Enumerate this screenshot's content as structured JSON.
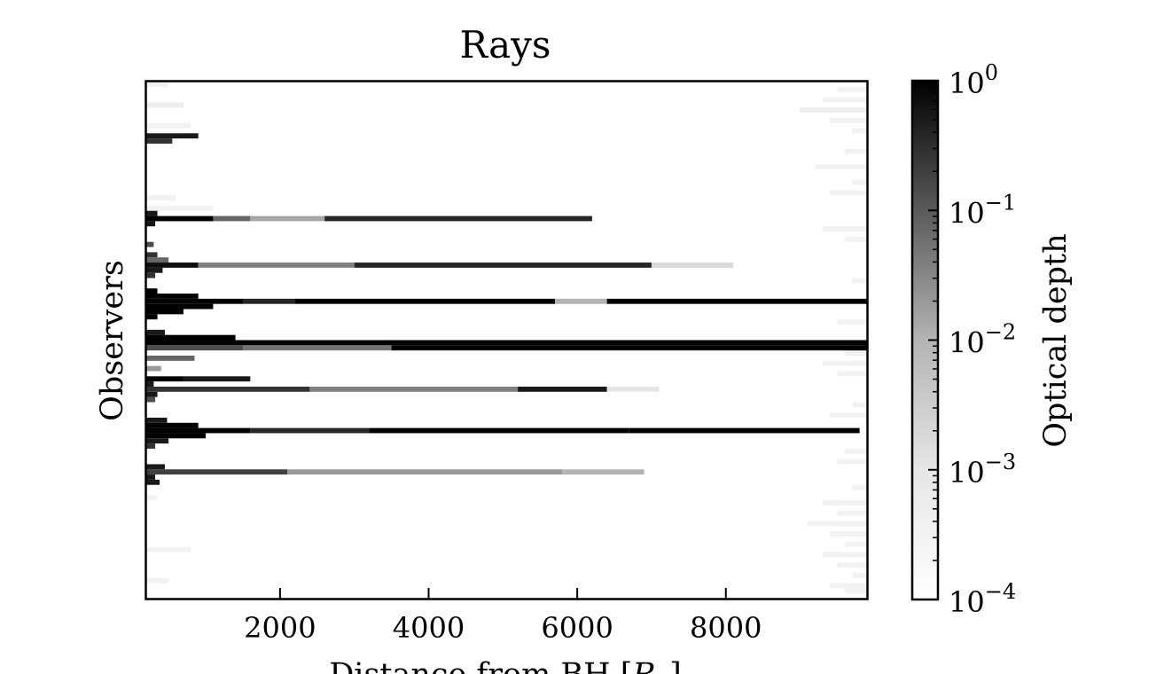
{
  "chart_data": {
    "type": "heatmap",
    "title": "Rays",
    "xlabel": "Distance from BH [R_g]",
    "ylabel": "Observers",
    "xlim": [
      200,
      9900
    ],
    "x_ticks": [
      {
        "value": 2000,
        "label": "2000"
      },
      {
        "value": 4000,
        "label": "4000"
      },
      {
        "value": 6000,
        "label": "6000"
      },
      {
        "value": 8000,
        "label": "8000"
      }
    ],
    "y_ticks_shown": false,
    "colormap": "grayscale (white = low, black = high)",
    "colorbar": {
      "label": "Optical depth",
      "scale": "log",
      "range": [
        0.0001,
        1
      ],
      "ticks": [
        {
          "value": 1,
          "base": "10",
          "exp": "0"
        },
        {
          "value": 0.1,
          "base": "10",
          "exp": "−1"
        },
        {
          "value": 0.01,
          "base": "10",
          "exp": "−2"
        },
        {
          "value": 0.001,
          "base": "10",
          "exp": "−3"
        },
        {
          "value": 0.0001,
          "base": "10",
          "exp": "−4"
        }
      ]
    },
    "observer_count": 100,
    "observer_rays": [
      {
        "observer": 26,
        "extent": 6200,
        "segments": [
          [
            200,
            1100,
            1
          ],
          [
            1100,
            1600,
            0.6
          ],
          [
            1600,
            2600,
            0.35
          ],
          [
            2600,
            6200,
            0.85
          ]
        ]
      },
      {
        "observer": 35,
        "extent": 8100,
        "segments": [
          [
            200,
            900,
            0.95
          ],
          [
            900,
            3000,
            0.5
          ],
          [
            3000,
            7000,
            0.85
          ],
          [
            7000,
            8100,
            0.15
          ]
        ]
      },
      {
        "observer": 42,
        "extent": 9900,
        "segments": [
          [
            200,
            1500,
            1
          ],
          [
            1500,
            2200,
            0.85
          ],
          [
            2200,
            5700,
            1
          ],
          [
            5700,
            6400,
            0.3
          ],
          [
            6400,
            9900,
            1
          ]
        ]
      },
      {
        "observer": 50,
        "extent": 9900,
        "segments": [
          [
            200,
            9900,
            1
          ]
        ]
      },
      {
        "observer": 51,
        "extent": 9900,
        "segments": [
          [
            200,
            1500,
            0.7
          ],
          [
            1500,
            3500,
            0.55
          ],
          [
            3500,
            9900,
            1
          ]
        ]
      },
      {
        "observer": 57,
        "extent": 1600,
        "segments": [
          [
            200,
            700,
            1
          ],
          [
            700,
            1600,
            0.9
          ]
        ]
      },
      {
        "observer": 59,
        "extent": 7100,
        "segments": [
          [
            200,
            2400,
            0.8
          ],
          [
            2400,
            5200,
            0.5
          ],
          [
            5200,
            6400,
            0.9
          ],
          [
            6400,
            7100,
            0.1
          ]
        ]
      },
      {
        "observer": 67,
        "extent": 9800,
        "segments": [
          [
            200,
            1600,
            1
          ],
          [
            1600,
            3200,
            0.85
          ],
          [
            3200,
            6700,
            1
          ],
          [
            6700,
            9800,
            1
          ]
        ]
      },
      {
        "observer": 75,
        "extent": 6900,
        "segments": [
          [
            200,
            2100,
            0.75
          ],
          [
            2100,
            5800,
            0.4
          ],
          [
            5800,
            6900,
            0.3
          ]
        ]
      }
    ],
    "observer_tails": [
      {
        "observer": 0,
        "length": 300,
        "level": 0.05
      },
      {
        "observer": 4,
        "length": 500,
        "level": 0.07
      },
      {
        "observer": 8,
        "length": 600,
        "level": 0.05
      },
      {
        "observer": 10,
        "length": 700,
        "level": 0.9
      },
      {
        "observer": 11,
        "length": 350,
        "level": 0.8
      },
      {
        "observer": 22,
        "length": 400,
        "level": 0.05
      },
      {
        "observer": 24,
        "length": 900,
        "level": 0.05
      },
      {
        "observer": 25,
        "length": 150,
        "level": 0.9
      },
      {
        "observer": 27,
        "length": 120,
        "level": 0.9
      },
      {
        "observer": 31,
        "length": 100,
        "level": 0.7
      },
      {
        "observer": 33,
        "length": 150,
        "level": 0.8
      },
      {
        "observer": 34,
        "length": 300,
        "level": 0.6
      },
      {
        "observer": 36,
        "length": 220,
        "level": 0.9
      },
      {
        "observer": 37,
        "length": 120,
        "level": 0.8
      },
      {
        "observer": 40,
        "length": 150,
        "level": 1
      },
      {
        "observer": 41,
        "length": 700,
        "level": 1
      },
      {
        "observer": 43,
        "length": 900,
        "level": 1
      },
      {
        "observer": 44,
        "length": 500,
        "level": 1
      },
      {
        "observer": 45,
        "length": 150,
        "level": 1
      },
      {
        "observer": 48,
        "length": 250,
        "level": 0.9
      },
      {
        "observer": 49,
        "length": 1200,
        "level": 1
      },
      {
        "observer": 53,
        "length": 650,
        "level": 0.6
      },
      {
        "observer": 55,
        "length": 200,
        "level": 0.4
      },
      {
        "observer": 58,
        "length": 100,
        "level": 0.9
      },
      {
        "observer": 60,
        "length": 150,
        "level": 0.9
      },
      {
        "observer": 61,
        "length": 120,
        "level": 0.7
      },
      {
        "observer": 65,
        "length": 280,
        "level": 0.9
      },
      {
        "observer": 66,
        "length": 700,
        "level": 1
      },
      {
        "observer": 68,
        "length": 800,
        "level": 1
      },
      {
        "observer": 69,
        "length": 300,
        "level": 0.9
      },
      {
        "observer": 70,
        "length": 120,
        "level": 0.8
      },
      {
        "observer": 74,
        "length": 250,
        "level": 0.9
      },
      {
        "observer": 76,
        "length": 120,
        "level": 0.9
      },
      {
        "observer": 77,
        "length": 180,
        "level": 0.9
      },
      {
        "observer": 80,
        "length": 150,
        "level": 0.05
      },
      {
        "observer": 90,
        "length": 600,
        "level": 0.05
      },
      {
        "observer": 96,
        "length": 300,
        "level": 0.05
      }
    ],
    "observer_edge_noise": [
      {
        "observer": 1,
        "start": 9500,
        "level": 0.05
      },
      {
        "observer": 3,
        "start": 9300,
        "level": 0.05
      },
      {
        "observer": 5,
        "start": 9000,
        "level": 0.07
      },
      {
        "observer": 7,
        "start": 9400,
        "level": 0.05
      },
      {
        "observer": 9,
        "start": 9700,
        "level": 0.05
      },
      {
        "observer": 13,
        "start": 9600,
        "level": 0.05
      },
      {
        "observer": 16,
        "start": 9200,
        "level": 0.05
      },
      {
        "observer": 19,
        "start": 9700,
        "level": 0.05
      },
      {
        "observer": 21,
        "start": 9400,
        "level": 0.05
      },
      {
        "observer": 28,
        "start": 9300,
        "level": 0.05
      },
      {
        "observer": 30,
        "start": 9600,
        "level": 0.05
      },
      {
        "observer": 38,
        "start": 9700,
        "level": 0.05
      },
      {
        "observer": 46,
        "start": 9500,
        "level": 0.05
      },
      {
        "observer": 52,
        "start": 9600,
        "level": 0.05
      },
      {
        "observer": 54,
        "start": 9300,
        "level": 0.05
      },
      {
        "observer": 56,
        "start": 9500,
        "level": 0.05
      },
      {
        "observer": 62,
        "start": 9700,
        "level": 0.05
      },
      {
        "observer": 64,
        "start": 9400,
        "level": 0.05
      },
      {
        "observer": 71,
        "start": 9600,
        "level": 0.05
      },
      {
        "observer": 73,
        "start": 9500,
        "level": 0.05
      },
      {
        "observer": 78,
        "start": 9700,
        "level": 0.05
      },
      {
        "observer": 81,
        "start": 9300,
        "level": 0.05
      },
      {
        "observer": 83,
        "start": 9500,
        "level": 0.05
      },
      {
        "observer": 85,
        "start": 9100,
        "level": 0.05
      },
      {
        "observer": 87,
        "start": 9400,
        "level": 0.05
      },
      {
        "observer": 89,
        "start": 9600,
        "level": 0.05
      },
      {
        "observer": 91,
        "start": 9300,
        "level": 0.05
      },
      {
        "observer": 93,
        "start": 9500,
        "level": 0.05
      },
      {
        "observer": 95,
        "start": 9700,
        "level": 0.05
      },
      {
        "observer": 97,
        "start": 9400,
        "level": 0.05
      },
      {
        "observer": 98,
        "start": 9600,
        "level": 0.05
      }
    ]
  }
}
